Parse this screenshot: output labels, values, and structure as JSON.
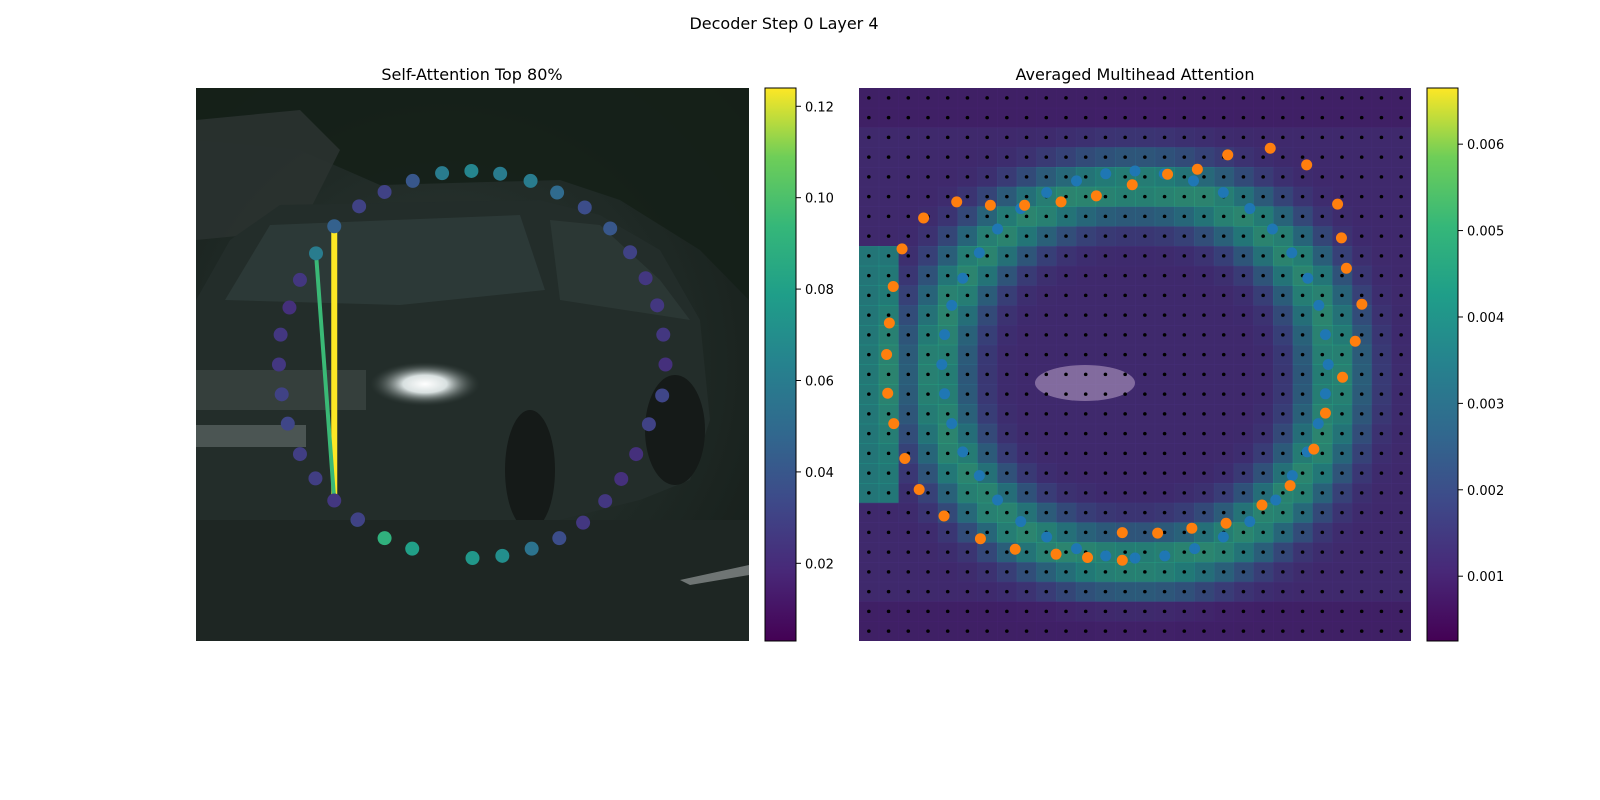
{
  "figure": {
    "suptitle": "Decoder Step 0 Layer 4"
  },
  "chart_data": [
    {
      "type": "scatter",
      "title": "Self-Attention Top 80%",
      "xlabel": "",
      "ylabel": "",
      "grid": false,
      "xlim": [
        0,
        100
      ],
      "ylim": [
        0,
        100
      ],
      "colormap": "viridis",
      "colorbar": {
        "min": 0.003,
        "max": 0.124,
        "ticks": [
          0.02,
          0.04,
          0.06,
          0.08,
          0.1,
          0.12
        ],
        "tick_labels": [
          "0.02",
          "0.04",
          "0.06",
          "0.08",
          "0.10",
          "0.12"
        ]
      },
      "points": [
        {
          "x": 50.0,
          "y": 85.0,
          "v": 0.075
        },
        {
          "x": 55.4,
          "y": 84.6,
          "v": 0.07
        },
        {
          "x": 60.7,
          "y": 83.3,
          "v": 0.055
        },
        {
          "x": 65.7,
          "y": 81.4,
          "v": 0.035
        },
        {
          "x": 70.0,
          "y": 78.6,
          "v": 0.025
        },
        {
          "x": 74.0,
          "y": 74.7,
          "v": 0.025
        },
        {
          "x": 76.9,
          "y": 70.7,
          "v": 0.022
        },
        {
          "x": 79.6,
          "y": 66.2,
          "v": 0.022
        },
        {
          "x": 81.9,
          "y": 60.8,
          "v": 0.03
        },
        {
          "x": 84.3,
          "y": 55.6,
          "v": 0.032
        },
        {
          "x": 84.9,
          "y": 50.0,
          "v": 0.022
        },
        {
          "x": 84.5,
          "y": 44.6,
          "v": 0.025
        },
        {
          "x": 83.4,
          "y": 39.3,
          "v": 0.025
        },
        {
          "x": 81.3,
          "y": 34.4,
          "v": 0.025
        },
        {
          "x": 78.5,
          "y": 29.7,
          "v": 0.03
        },
        {
          "x": 74.9,
          "y": 25.4,
          "v": 0.04
        },
        {
          "x": 70.3,
          "y": 21.6,
          "v": 0.035
        },
        {
          "x": 65.3,
          "y": 18.9,
          "v": 0.05
        },
        {
          "x": 60.5,
          "y": 16.8,
          "v": 0.06
        },
        {
          "x": 55.0,
          "y": 15.5,
          "v": 0.06
        },
        {
          "x": 49.8,
          "y": 15.0,
          "v": 0.065
        },
        {
          "x": 44.5,
          "y": 15.4,
          "v": 0.06
        },
        {
          "x": 39.2,
          "y": 16.8,
          "v": 0.04
        },
        {
          "x": 34.1,
          "y": 18.8,
          "v": 0.03
        },
        {
          "x": 29.5,
          "y": 21.4,
          "v": 0.03
        },
        {
          "x": 25.0,
          "y": 25.0,
          "v": 0.045
        },
        {
          "x": 21.7,
          "y": 29.9,
          "v": 0.06
        },
        {
          "x": 18.8,
          "y": 34.7,
          "v": 0.025
        },
        {
          "x": 16.9,
          "y": 39.7,
          "v": 0.022
        },
        {
          "x": 15.3,
          "y": 44.6,
          "v": 0.025
        },
        {
          "x": 15.0,
          "y": 50.0,
          "v": 0.025
        },
        {
          "x": 15.5,
          "y": 55.4,
          "v": 0.03
        },
        {
          "x": 16.6,
          "y": 60.7,
          "v": 0.032
        },
        {
          "x": 18.8,
          "y": 66.2,
          "v": 0.028
        },
        {
          "x": 21.6,
          "y": 70.6,
          "v": 0.028
        },
        {
          "x": 25.0,
          "y": 74.6,
          "v": 0.025
        },
        {
          "x": 29.2,
          "y": 78.1,
          "v": 0.035
        },
        {
          "x": 29.3,
          "y": 78.0,
          "v": 0.03
        },
        {
          "x": 34.1,
          "y": 81.4,
          "v": 0.09
        },
        {
          "x": 39.1,
          "y": 83.3,
          "v": 0.08
        }
      ],
      "attention_lines": [
        {
          "from": 25,
          "to": 35,
          "v": 0.124
        },
        {
          "from": 26,
          "to": 35,
          "v": 0.095
        }
      ]
    },
    {
      "type": "heatmap",
      "title": "Averaged Multihead Attention",
      "xlabel": "",
      "ylabel": "",
      "grid": false,
      "xlim": [
        0,
        100
      ],
      "ylim": [
        0,
        100
      ],
      "colormap": "viridis",
      "colorbar": {
        "min": 0.00025,
        "max": 0.00665,
        "ticks": [
          0.001,
          0.002,
          0.003,
          0.004,
          0.005,
          0.006
        ],
        "tick_labels": [
          "0.001",
          "0.002",
          "0.003",
          "0.004",
          "0.005",
          "0.006"
        ]
      },
      "heatmap_grid": [
        28,
        28
      ],
      "reference_points_color": "#000000",
      "series": [
        {
          "color": "#1f77b4",
          "points": [
            {
              "x": 50.0,
              "y": 85.0
            },
            {
              "x": 55.4,
              "y": 84.6
            },
            {
              "x": 60.8,
              "y": 83.3
            },
            {
              "x": 66.0,
              "y": 81.2
            },
            {
              "x": 70.8,
              "y": 78.4
            },
            {
              "x": 75.5,
              "y": 74.5
            },
            {
              "x": 78.5,
              "y": 70.1
            },
            {
              "x": 81.2,
              "y": 65.8
            },
            {
              "x": 83.2,
              "y": 60.7
            },
            {
              "x": 84.5,
              "y": 55.3
            },
            {
              "x": 85.0,
              "y": 50.0
            },
            {
              "x": 84.5,
              "y": 44.6
            },
            {
              "x": 83.3,
              "y": 39.3
            },
            {
              "x": 81.3,
              "y": 34.4
            },
            {
              "x": 78.4,
              "y": 29.8
            },
            {
              "x": 74.9,
              "y": 25.5
            },
            {
              "x": 70.8,
              "y": 21.8
            },
            {
              "x": 66.0,
              "y": 18.9
            },
            {
              "x": 60.6,
              "y": 16.8
            },
            {
              "x": 55.3,
              "y": 15.5
            },
            {
              "x": 50.0,
              "y": 15.0
            },
            {
              "x": 44.7,
              "y": 15.5
            },
            {
              "x": 39.4,
              "y": 16.8
            },
            {
              "x": 34.0,
              "y": 18.9
            },
            {
              "x": 29.3,
              "y": 21.8
            },
            {
              "x": 25.1,
              "y": 25.5
            },
            {
              "x": 21.8,
              "y": 29.8
            },
            {
              "x": 18.8,
              "y": 34.4
            },
            {
              "x": 16.8,
              "y": 39.3
            },
            {
              "x": 15.5,
              "y": 44.6
            },
            {
              "x": 15.0,
              "y": 50.0
            },
            {
              "x": 15.5,
              "y": 55.3
            },
            {
              "x": 16.8,
              "y": 60.7
            },
            {
              "x": 18.8,
              "y": 65.8
            },
            {
              "x": 21.8,
              "y": 70.1
            },
            {
              "x": 25.1,
              "y": 74.5
            },
            {
              "x": 29.3,
              "y": 78.4
            },
            {
              "x": 34.0,
              "y": 81.2
            },
            {
              "x": 39.4,
              "y": 83.3
            },
            {
              "x": 44.7,
              "y": 84.6
            }
          ]
        },
        {
          "color": "#ff7f0e",
          "points": [
            {
              "x": 47.7,
              "y": 80.4
            },
            {
              "x": 54.1,
              "y": 80.5
            },
            {
              "x": 60.3,
              "y": 79.6
            },
            {
              "x": 66.5,
              "y": 78.7
            },
            {
              "x": 73.0,
              "y": 75.4
            },
            {
              "x": 78.1,
              "y": 71.9
            },
            {
              "x": 82.4,
              "y": 65.3
            },
            {
              "x": 84.5,
              "y": 58.8
            },
            {
              "x": 87.6,
              "y": 52.3
            },
            {
              "x": 89.9,
              "y": 45.8
            },
            {
              "x": 91.1,
              "y": 39.1
            },
            {
              "x": 88.3,
              "y": 32.6
            },
            {
              "x": 87.4,
              "y": 27.1
            },
            {
              "x": 86.7,
              "y": 21.0
            },
            {
              "x": 81.1,
              "y": 13.9
            },
            {
              "x": 74.5,
              "y": 10.9
            },
            {
              "x": 66.8,
              "y": 12.1
            },
            {
              "x": 61.3,
              "y": 14.7
            },
            {
              "x": 55.9,
              "y": 15.6
            },
            {
              "x": 49.5,
              "y": 17.5
            },
            {
              "x": 43.0,
              "y": 19.5
            },
            {
              "x": 36.6,
              "y": 20.6
            },
            {
              "x": 30.0,
              "y": 21.2
            },
            {
              "x": 23.8,
              "y": 21.2
            },
            {
              "x": 17.7,
              "y": 20.6
            },
            {
              "x": 11.7,
              "y": 23.5
            },
            {
              "x": 7.8,
              "y": 29.1
            },
            {
              "x": 6.2,
              "y": 35.9
            },
            {
              "x": 5.5,
              "y": 42.5
            },
            {
              "x": 5.0,
              "y": 48.2
            },
            {
              "x": 5.2,
              "y": 55.2
            },
            {
              "x": 6.3,
              "y": 60.7
            },
            {
              "x": 8.3,
              "y": 67.0
            },
            {
              "x": 10.9,
              "y": 72.6
            },
            {
              "x": 15.4,
              "y": 77.4
            },
            {
              "x": 22.0,
              "y": 81.5
            },
            {
              "x": 28.3,
              "y": 83.4
            },
            {
              "x": 35.7,
              "y": 84.3
            },
            {
              "x": 41.4,
              "y": 84.9
            },
            {
              "x": 47.7,
              "y": 85.4
            }
          ]
        }
      ]
    }
  ]
}
